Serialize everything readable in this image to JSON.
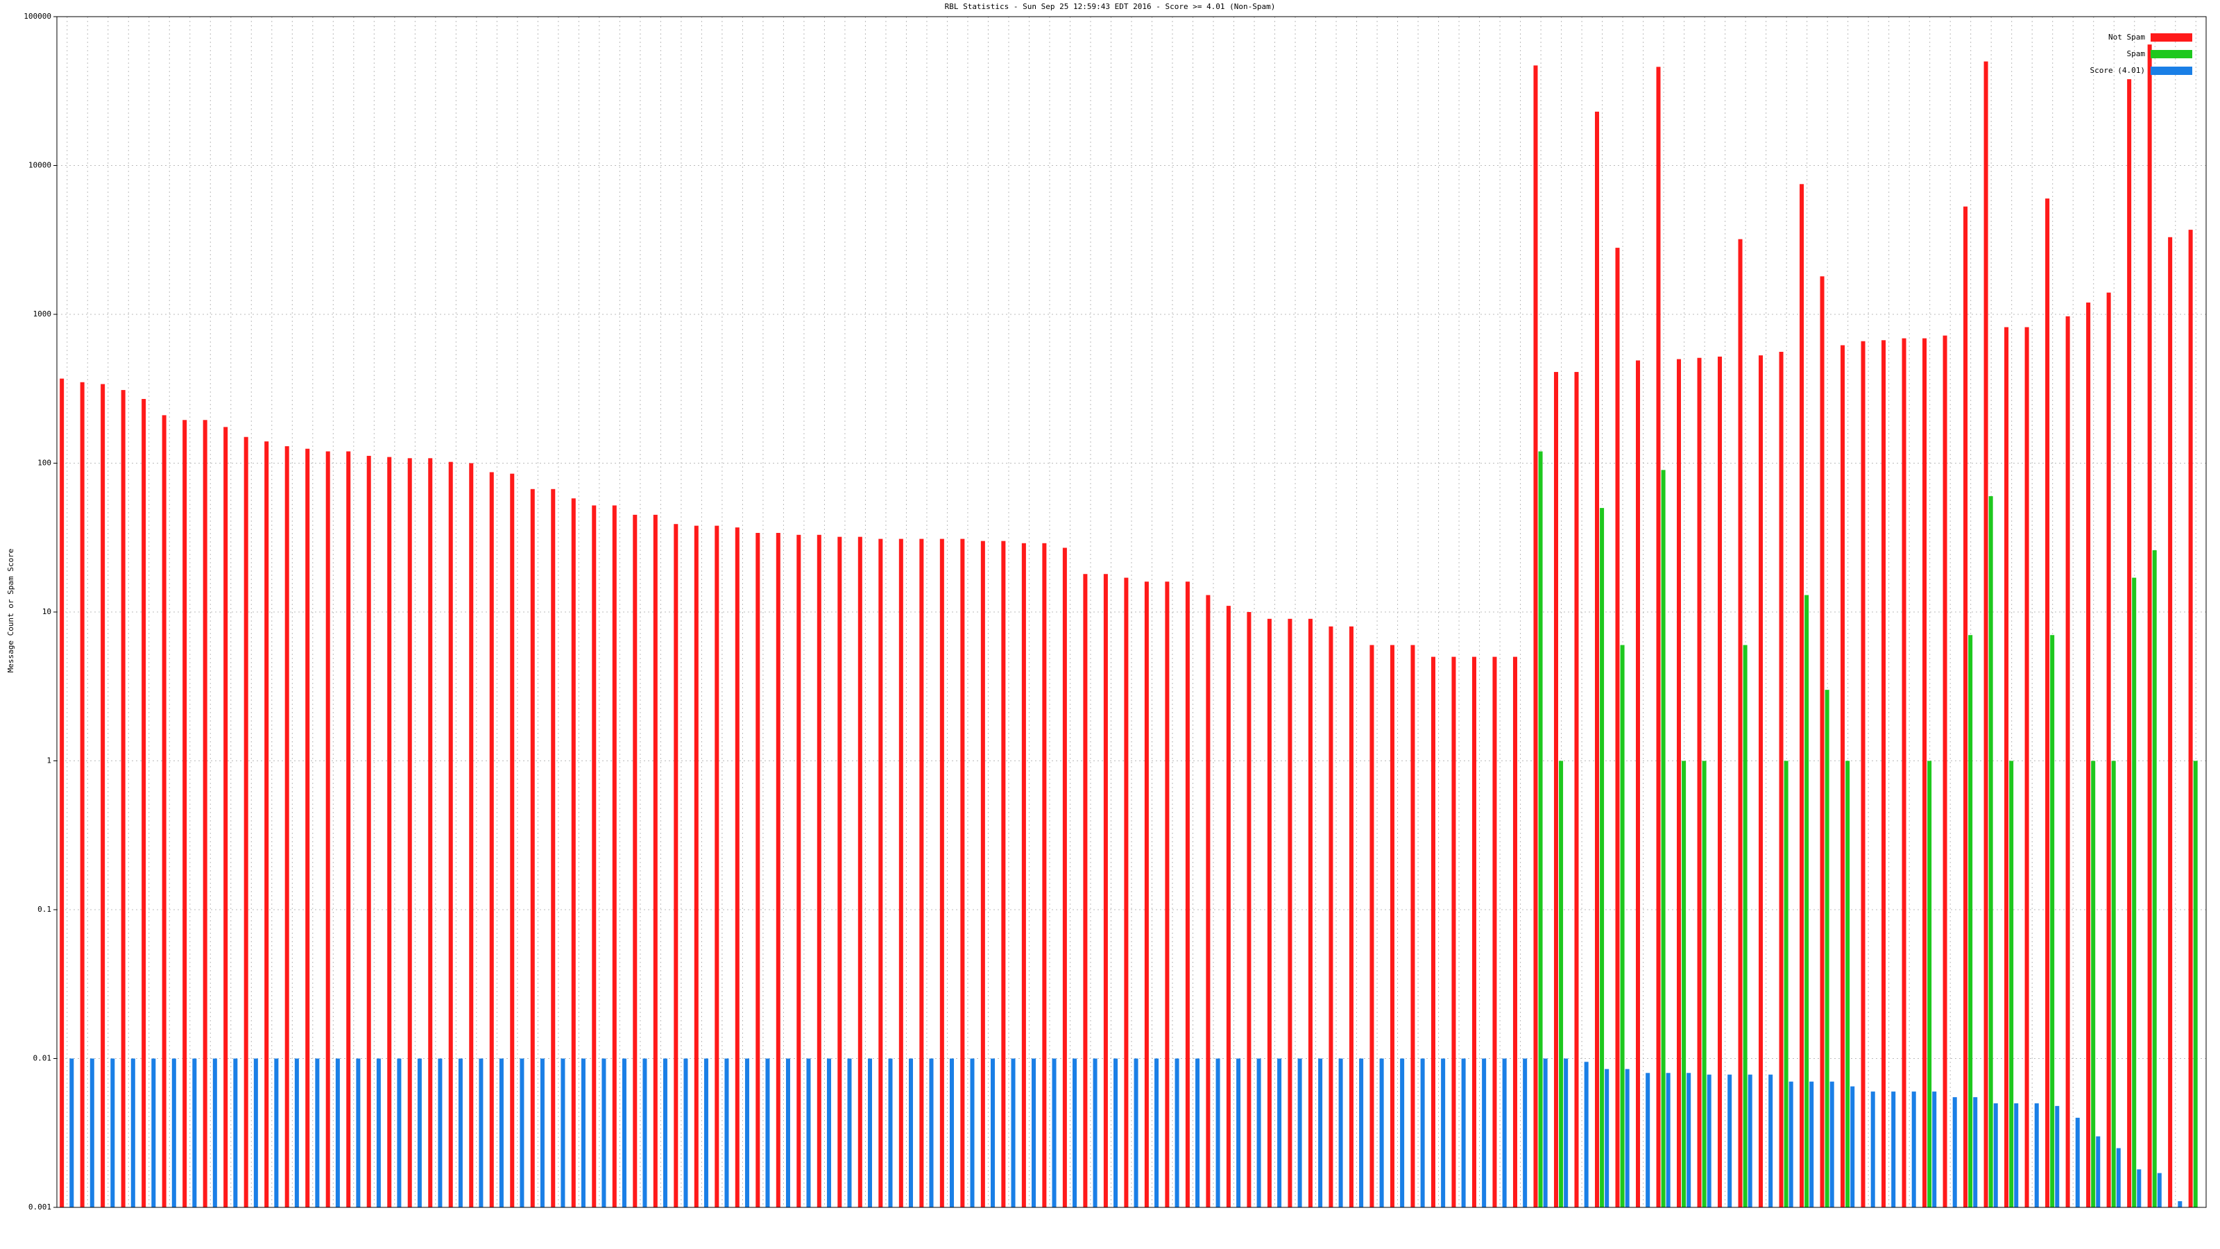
{
  "chart_data": {
    "type": "bar",
    "title": "RBL Statistics - Sun Sep 25 12:59:43 EDT 2016 - Score >= 4.01 (Non-Spam)",
    "y_label": "Message Count or Spam Score",
    "log_scale": true,
    "grid": true,
    "legend": "top-right",
    "ylim": [
      0.001,
      100000
    ],
    "yticks": [
      0.001,
      0.01,
      0.1,
      1,
      10,
      100,
      1000,
      10000,
      100000
    ],
    "categories": [
      null,
      null,
      null,
      null,
      null,
      null,
      null,
      null,
      null,
      null,
      null,
      null,
      null,
      null,
      null,
      null,
      null,
      null,
      null,
      null,
      null,
      null,
      null,
      null,
      null,
      null,
      null,
      null,
      null,
      null,
      null,
      null,
      null,
      null,
      null,
      null,
      null,
      null,
      null,
      null,
      null,
      null,
      null,
      null,
      null,
      null,
      null,
      null,
      null,
      null,
      null,
      null,
      null,
      null,
      null,
      null,
      null,
      null,
      null,
      null,
      null,
      null,
      null,
      null,
      null,
      null,
      null,
      null,
      null,
      null,
      null,
      null,
      null,
      null,
      null,
      null,
      null,
      null,
      null,
      null,
      null,
      null,
      null,
      null,
      null,
      null,
      null,
      null,
      null,
      null,
      null,
      null,
      null,
      null,
      null,
      null,
      null,
      null,
      null,
      null,
      null,
      null,
      null,
      null,
      null
    ],
    "series": [
      {
        "name": "Not Spam",
        "color": "#ff1a1a",
        "values": [
          370,
          350,
          340,
          310,
          270,
          210,
          195,
          195,
          175,
          150,
          140,
          130,
          125,
          120,
          120,
          112,
          110,
          108,
          108,
          102,
          100,
          87,
          85,
          67,
          67,
          58,
          52,
          52,
          45,
          45,
          39,
          38,
          38,
          37,
          34,
          34,
          33,
          33,
          32,
          32,
          31,
          31,
          31,
          31,
          31,
          30,
          30,
          29,
          29,
          27,
          18,
          18,
          17,
          16,
          16,
          16,
          13,
          11,
          10,
          9,
          9,
          9,
          8,
          8,
          6,
          6,
          6,
          5,
          5,
          5,
          5,
          5,
          47000,
          410,
          410,
          23000,
          2800,
          490,
          46000,
          500,
          510,
          520,
          3200,
          530,
          560,
          7500,
          1800,
          620,
          660,
          670,
          690,
          690,
          720,
          5300,
          50000,
          820,
          820,
          6000,
          970,
          1200,
          1400,
          38000,
          65000,
          3300,
          3700
        ]
      },
      {
        "name": "Spam",
        "color": "#1ec81e",
        "values": [
          null,
          null,
          null,
          null,
          null,
          null,
          null,
          null,
          null,
          null,
          null,
          null,
          null,
          null,
          null,
          null,
          null,
          null,
          null,
          null,
          null,
          null,
          null,
          null,
          null,
          null,
          null,
          null,
          null,
          null,
          null,
          null,
          null,
          null,
          null,
          null,
          null,
          null,
          null,
          null,
          null,
          null,
          null,
          null,
          null,
          null,
          null,
          null,
          null,
          null,
          null,
          null,
          null,
          null,
          null,
          null,
          null,
          null,
          null,
          null,
          null,
          null,
          null,
          null,
          null,
          null,
          null,
          null,
          null,
          null,
          null,
          null,
          120,
          1,
          null,
          50,
          6,
          null,
          90,
          1,
          1,
          null,
          6,
          null,
          1,
          13,
          3,
          1,
          null,
          null,
          null,
          1,
          null,
          7,
          60,
          1,
          null,
          7,
          null,
          1,
          1,
          17,
          26,
          null,
          1
        ]
      },
      {
        "name": "Score (4.01)",
        "color": "#1a7fe6",
        "values": [
          0.01,
          0.01,
          0.01,
          0.01,
          0.01,
          0.01,
          0.01,
          0.01,
          0.01,
          0.01,
          0.01,
          0.01,
          0.01,
          0.01,
          0.01,
          0.01,
          0.01,
          0.01,
          0.01,
          0.01,
          0.01,
          0.01,
          0.01,
          0.01,
          0.01,
          0.01,
          0.01,
          0.01,
          0.01,
          0.01,
          0.01,
          0.01,
          0.01,
          0.01,
          0.01,
          0.01,
          0.01,
          0.01,
          0.01,
          0.01,
          0.01,
          0.01,
          0.01,
          0.01,
          0.01,
          0.01,
          0.01,
          0.01,
          0.01,
          0.01,
          0.01,
          0.01,
          0.01,
          0.01,
          0.01,
          0.01,
          0.01,
          0.01,
          0.01,
          0.01,
          0.01,
          0.01,
          0.01,
          0.01,
          0.01,
          0.01,
          0.01,
          0.01,
          0.01,
          0.01,
          0.01,
          0.01,
          0.01,
          0.01,
          0.0095,
          0.0085,
          0.0085,
          0.008,
          0.008,
          0.008,
          0.0078,
          0.0078,
          0.0078,
          0.0078,
          0.007,
          0.007,
          0.007,
          0.0065,
          0.006,
          0.006,
          0.006,
          0.006,
          0.0055,
          0.0055,
          0.005,
          0.005,
          0.005,
          0.0048,
          0.004,
          0.003,
          0.0025,
          0.0018,
          0.0017,
          0.0011,
          null
        ]
      }
    ]
  }
}
